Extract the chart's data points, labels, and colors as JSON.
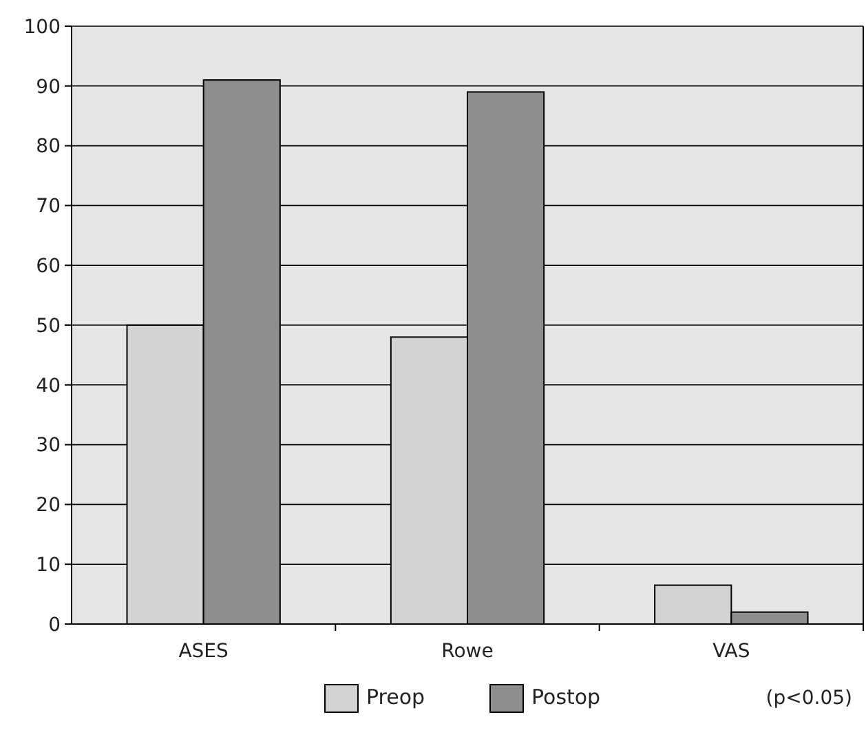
{
  "chart_data": {
    "type": "bar",
    "categories": [
      "ASES",
      "Rowe",
      "VAS"
    ],
    "series": [
      {
        "name": "Preop",
        "color": "#d3d3d3",
        "values": [
          50,
          48,
          6.5
        ]
      },
      {
        "name": "Postop",
        "color": "#8e8e8e",
        "values": [
          91,
          89,
          2
        ]
      }
    ],
    "ylim": [
      0,
      100
    ],
    "yticks": [
      0,
      10,
      20,
      30,
      40,
      50,
      60,
      70,
      80,
      90,
      100
    ],
    "grid": "y",
    "legend": "bottom",
    "annotations": [
      "(p<0.05)"
    ]
  }
}
